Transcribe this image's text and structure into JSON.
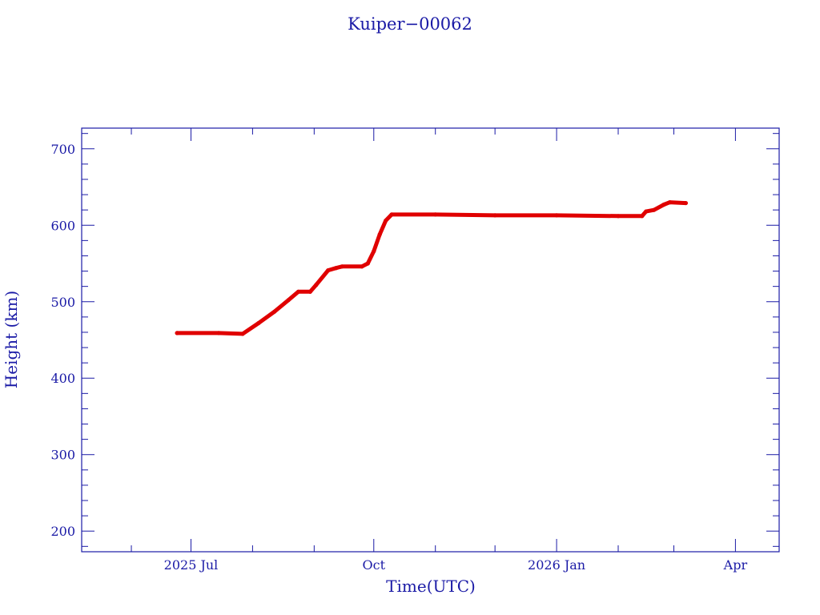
{
  "chart_data": {
    "type": "line",
    "title": "Kuiper−00062",
    "xlabel": "Time(UTC)",
    "ylabel": "Height (km)",
    "xlim": [
      "2025-05-07",
      "2026-04-23"
    ],
    "ylim": [
      173,
      727
    ],
    "x_ticks": [
      {
        "date": "2025-07-01",
        "label": "2025 Jul"
      },
      {
        "date": "2025-10-01",
        "label": "Oct"
      },
      {
        "date": "2026-01-01",
        "label": "2026 Jan"
      },
      {
        "date": "2026-04-01",
        "label": "Apr"
      }
    ],
    "x_minor_ticks": [
      "2025-06-01",
      "2025-08-01",
      "2025-09-01",
      "2025-11-01",
      "2025-12-01",
      "2026-02-01",
      "2026-03-01"
    ],
    "y_ticks": [
      200,
      300,
      400,
      500,
      600,
      700
    ],
    "y_minor_step": 20,
    "grid": false,
    "colors": {
      "series": "#e00000",
      "axes": "#1a1aa6"
    },
    "series": [
      {
        "color": "#e00000",
        "points": [
          {
            "x": "2025-06-24",
            "y": 459
          },
          {
            "x": "2025-07-15",
            "y": 459
          },
          {
            "x": "2025-07-27",
            "y": 458
          },
          {
            "x": "2025-08-04",
            "y": 472
          },
          {
            "x": "2025-08-12",
            "y": 487
          },
          {
            "x": "2025-08-19",
            "y": 502
          },
          {
            "x": "2025-08-24",
            "y": 513
          },
          {
            "x": "2025-08-30",
            "y": 513
          },
          {
            "x": "2025-09-02",
            "y": 522
          },
          {
            "x": "2025-09-08",
            "y": 541
          },
          {
            "x": "2025-09-12",
            "y": 544
          },
          {
            "x": "2025-09-15",
            "y": 546
          },
          {
            "x": "2025-09-25",
            "y": 546
          },
          {
            "x": "2025-09-28",
            "y": 550
          },
          {
            "x": "2025-10-01",
            "y": 566
          },
          {
            "x": "2025-10-04",
            "y": 588
          },
          {
            "x": "2025-10-07",
            "y": 606
          },
          {
            "x": "2025-10-10",
            "y": 614
          },
          {
            "x": "2025-11-01",
            "y": 614
          },
          {
            "x": "2025-12-01",
            "y": 613
          },
          {
            "x": "2026-01-01",
            "y": 613
          },
          {
            "x": "2026-02-01",
            "y": 612
          },
          {
            "x": "2026-02-13",
            "y": 612
          },
          {
            "x": "2026-02-15",
            "y": 618
          },
          {
            "x": "2026-02-19",
            "y": 620
          },
          {
            "x": "2026-02-24",
            "y": 627
          },
          {
            "x": "2026-02-27",
            "y": 630
          },
          {
            "x": "2026-03-07",
            "y": 629
          }
        ]
      }
    ]
  }
}
